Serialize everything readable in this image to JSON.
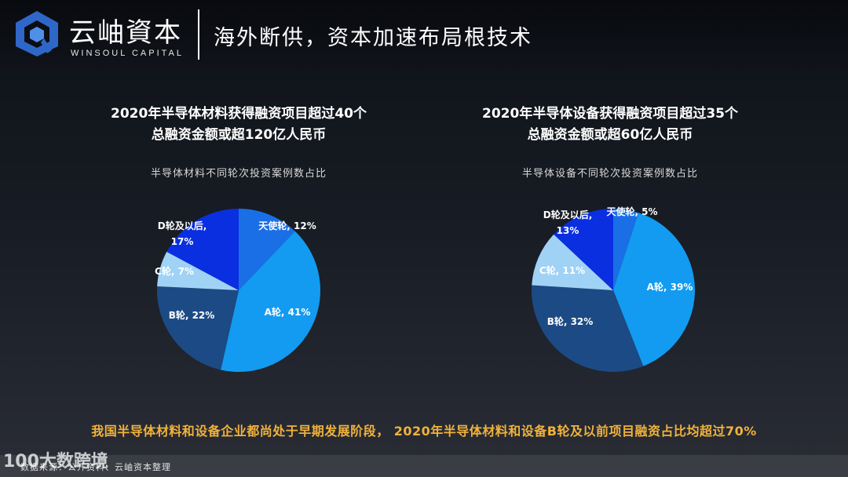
{
  "header": {
    "logo_cn": "云岫資本",
    "logo_en": "WINSOUL CAPITAL",
    "title": "海外断供，资本加速布局根技术"
  },
  "chart_data": [
    {
      "type": "pie",
      "title_line1": "2020年半导体材料获得融资项目超过40个",
      "title_line2": "总融资金额或超120亿人民币",
      "subtitle": "半导体材料不同轮次投资案例数占比",
      "slices": [
        {
          "label": "天使轮, 12%",
          "value": 12,
          "color": "#1a6fe6"
        },
        {
          "label": "A轮, 41%",
          "value": 41,
          "color": "#129bf0"
        },
        {
          "label": "B轮, 22%",
          "value": 22,
          "color": "#1c4a84"
        },
        {
          "label": "C轮, 7%",
          "value": 7,
          "color": "#9fd2f5"
        },
        {
          "label": "D轮及以后, 17%",
          "label_line1": "D轮及以后,",
          "label_line2": "17%",
          "value": 17,
          "color": "#0a2fe0"
        }
      ]
    },
    {
      "type": "pie",
      "title_line1": "2020年半导体设备获得融资项目超过35个",
      "title_line2": "总融资金额或超60亿人民币",
      "subtitle": "半导体设备不同轮次投资案例数占比",
      "slices": [
        {
          "label": "天使轮, 5%",
          "value": 5,
          "color": "#1a6fe6"
        },
        {
          "label": "A轮, 39%",
          "value": 39,
          "color": "#129bf0"
        },
        {
          "label": "B轮, 32%",
          "value": 32,
          "color": "#1c4a84"
        },
        {
          "label": "C轮, 11%",
          "value": 11,
          "color": "#9fd2f5"
        },
        {
          "label": "D轮及以后, 13%",
          "label_line1": "D轮及以后,",
          "label_line2": "13%",
          "value": 13,
          "color": "#0a2fe0"
        }
      ]
    }
  ],
  "conclusion": "我国半导体材料和设备企业都尚处于早期发展阶段， 2020年半导体材料和设备B轮及以前项目融资占比均超过70%",
  "footer": {
    "source": "数据来源：公开资料、云岫资本整理",
    "watermark": "100大数跨境"
  }
}
